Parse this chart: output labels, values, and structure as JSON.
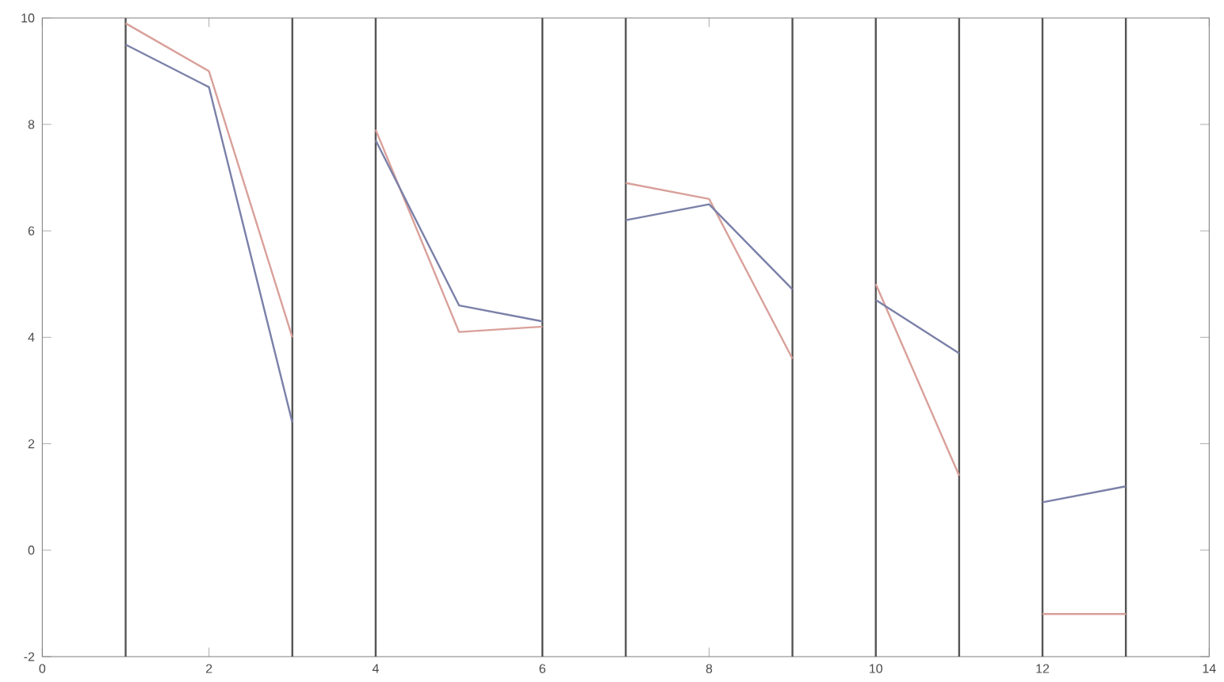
{
  "chart_data": {
    "type": "line",
    "xlim": [
      0,
      14
    ],
    "ylim": [
      -2,
      10
    ],
    "xticks": [
      0,
      2,
      4,
      6,
      8,
      10,
      12,
      14
    ],
    "yticks": [
      -2,
      0,
      2,
      4,
      6,
      8,
      10
    ],
    "series": [
      {
        "color": "#d9a09a",
        "x": [
          1,
          2,
          3,
          3.5,
          4,
          5,
          6,
          6.5,
          7,
          8,
          9,
          9.5,
          10,
          11,
          11.5,
          12,
          13
        ],
        "values": [
          9.9,
          9.0,
          4.0,
          null,
          7.9,
          4.1,
          4.2,
          null,
          6.9,
          6.6,
          3.6,
          null,
          5.0,
          1.4,
          null,
          -1.2,
          -1.2
        ]
      },
      {
        "color": "#7a80a8",
        "x": [
          1,
          2,
          3,
          3.5,
          4,
          5,
          6,
          6.5,
          7,
          8,
          9,
          9.5,
          10,
          11,
          11.5,
          12,
          13
        ],
        "values": [
          9.5,
          8.7,
          2.4,
          null,
          7.7,
          4.6,
          4.3,
          null,
          6.2,
          6.5,
          4.9,
          null,
          4.7,
          3.7,
          null,
          0.9,
          1.2
        ]
      }
    ],
    "ref_lines": [
      {
        "axis": "x",
        "value": 1,
        "color": "#555555"
      },
      {
        "axis": "x",
        "value": 3,
        "color": "#555555"
      },
      {
        "axis": "x",
        "value": 4,
        "color": "#555555"
      },
      {
        "axis": "x",
        "value": 6,
        "color": "#555555"
      },
      {
        "axis": "x",
        "value": 7,
        "color": "#555555"
      },
      {
        "axis": "x",
        "value": 9,
        "color": "#555555"
      },
      {
        "axis": "x",
        "value": 10,
        "color": "#555555"
      },
      {
        "axis": "x",
        "value": 11,
        "color": "#555555"
      },
      {
        "axis": "x",
        "value": 12,
        "color": "#555555"
      },
      {
        "axis": "x",
        "value": 13,
        "color": "#555555"
      }
    ],
    "grid": false,
    "marker": "none",
    "line_style": "solid"
  }
}
